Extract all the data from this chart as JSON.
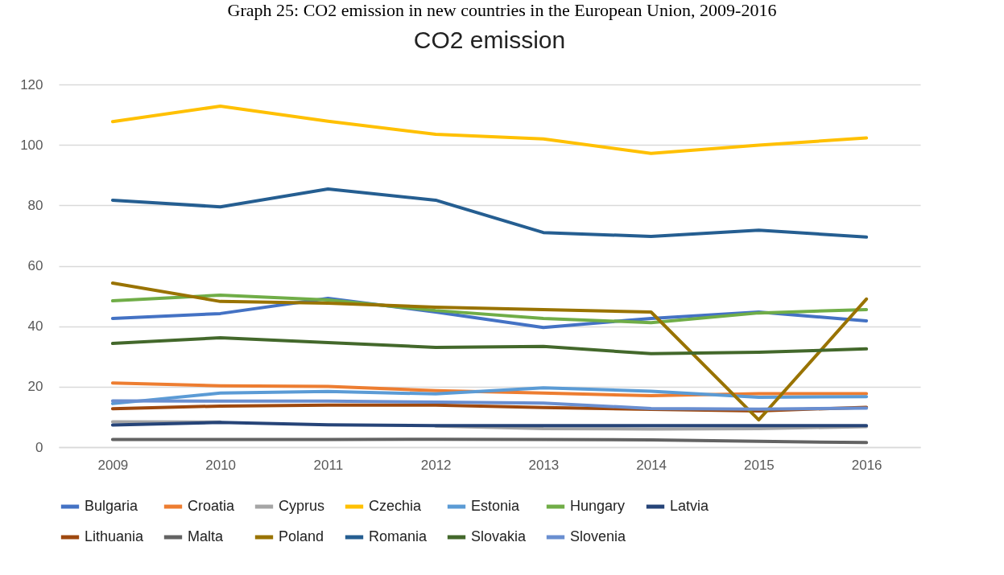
{
  "chart_data": {
    "type": "line",
    "title": "CO2 emission",
    "annotations": [
      "Graph 25: CO2 emission in new countries in the European Union, 2009-2016"
    ],
    "categories": [
      "2009",
      "2010",
      "2011",
      "2012",
      "2013",
      "2014",
      "2015",
      "2016"
    ],
    "ylim": [
      0,
      120
    ],
    "yticks": [
      0,
      20,
      40,
      60,
      80,
      100,
      120
    ],
    "grid": "y",
    "legend": "bottom",
    "marker": "none",
    "line_style": "solid",
    "series": [
      {
        "name": "Bulgaria",
        "color": "#4472c4",
        "values": [
          42.6,
          44.2,
          49.2,
          44.7,
          39.6,
          42.6,
          44.7,
          41.8
        ]
      },
      {
        "name": "Croatia",
        "color": "#ed7d31",
        "values": [
          21.2,
          20.3,
          20.1,
          18.7,
          17.9,
          17.0,
          17.7,
          17.7
        ]
      },
      {
        "name": "Cyprus",
        "color": "#a5a5a5",
        "values": [
          8.4,
          8.3,
          null,
          7.0,
          6.1,
          6.0,
          6.1,
          6.8
        ]
      },
      {
        "name": "Czechia",
        "color": "#ffc000",
        "values": [
          107.7,
          112.8,
          107.8,
          103.5,
          102.0,
          97.2,
          99.9,
          102.3
        ]
      },
      {
        "name": "Estonia",
        "color": "#5b9bd5",
        "values": [
          14.4,
          17.9,
          18.4,
          17.6,
          19.6,
          18.5,
          16.5,
          16.7
        ]
      },
      {
        "name": "Hungary",
        "color": "#70ad47",
        "values": [
          48.4,
          50.3,
          48.7,
          45.2,
          42.6,
          41.2,
          44.4,
          45.5
        ]
      },
      {
        "name": "Latvia",
        "color": "#264478",
        "values": [
          7.3,
          8.2,
          7.4,
          7.1,
          7.1,
          7.1,
          7.1,
          7.1
        ]
      },
      {
        "name": "Lithuania",
        "color": "#9e480e",
        "values": [
          12.7,
          13.6,
          13.9,
          13.9,
          13.1,
          12.5,
          12.0,
          13.2
        ]
      },
      {
        "name": "Malta",
        "color": "#636363",
        "values": [
          2.5,
          2.5,
          2.5,
          2.6,
          2.5,
          2.4,
          1.9,
          1.5
        ]
      },
      {
        "name": "Poland",
        "color": "#997300",
        "values": [
          54.3,
          48.2,
          47.6,
          46.3,
          45.5,
          44.7,
          9.0,
          49.0
        ]
      },
      {
        "name": "Romania",
        "color": "#255e91",
        "values": [
          81.7,
          79.5,
          85.4,
          81.7,
          71.0,
          69.7,
          71.8,
          69.5
        ]
      },
      {
        "name": "Slovakia",
        "color": "#43682b",
        "values": [
          34.3,
          36.2,
          34.6,
          33.0,
          33.3,
          30.9,
          31.4,
          32.5
        ]
      },
      {
        "name": "Slovenia",
        "color": "#698ed0",
        "values": [
          15.3,
          15.2,
          15.2,
          14.9,
          14.6,
          12.8,
          12.6,
          12.9
        ]
      }
    ]
  }
}
